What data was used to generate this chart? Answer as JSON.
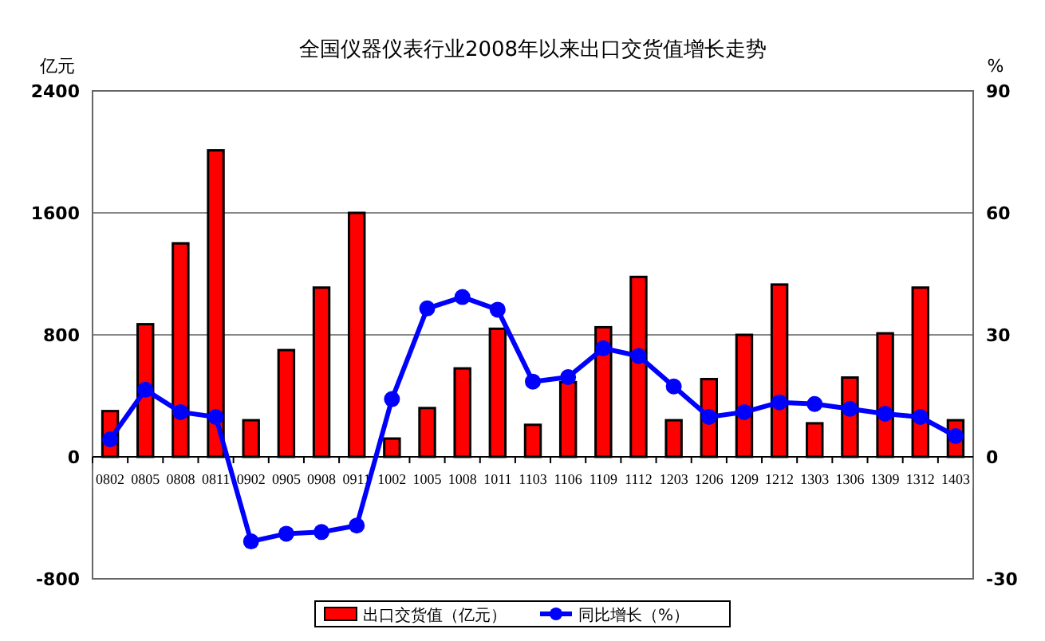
{
  "chart_data": {
    "type": "bar",
    "title": "全国仪器仪表行业2008年以来出口交货值增长走势",
    "ylabel": "亿元",
    "y2label": "%",
    "categories": [
      "0802",
      "0805",
      "0808",
      "0811",
      "0902",
      "0905",
      "0908",
      "0911",
      "1002",
      "1005",
      "1008",
      "1011",
      "1103",
      "1106",
      "1109",
      "1112",
      "1203",
      "1206",
      "1209",
      "1212",
      "1303",
      "1306",
      "1309",
      "1312",
      "1403"
    ],
    "series": [
      {
        "name": "出口交货值（亿元）",
        "color": "#ff0000",
        "values": [
          300,
          870,
          1400,
          2010,
          240,
          700,
          1110,
          1600,
          120,
          320,
          580,
          840,
          210,
          490,
          850,
          1180,
          240,
          510,
          800,
          1130,
          220,
          520,
          810,
          1110,
          240
        ]
      },
      {
        "name": "同比增长（%）",
        "type": "line",
        "axis": "y2",
        "color": "#0000ff",
        "marker": "circle",
        "values": [
          4.3,
          16.5,
          11,
          9.8,
          -20.8,
          -18.9,
          -18.5,
          -16.9,
          14.2,
          36.5,
          39.3,
          36.2,
          18.5,
          19.6,
          26.7,
          24.8,
          17.3,
          9.8,
          11,
          13.4,
          13,
          11.8,
          10.6,
          9.8,
          5.1
        ]
      }
    ],
    "ylim": [
      -800,
      2400
    ],
    "yticks": [
      -800,
      0,
      800,
      1600,
      2400
    ],
    "y2lim": [
      -30,
      90
    ],
    "y2ticks": [
      -30,
      0,
      30,
      60,
      90
    ],
    "grid": "y",
    "legend": "bottom"
  }
}
